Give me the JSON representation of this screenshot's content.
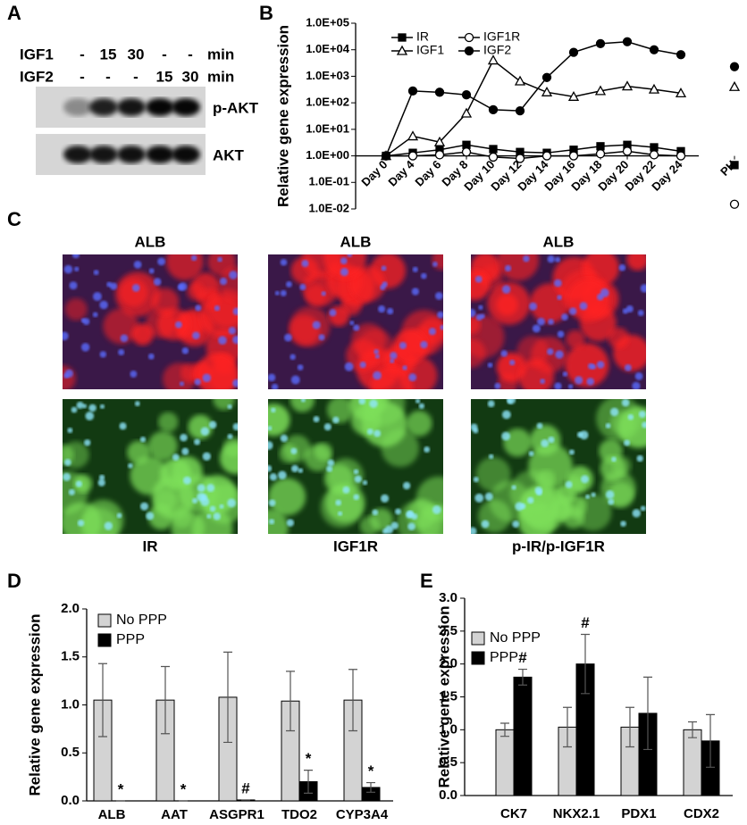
{
  "panel_A": {
    "label": "A",
    "rows": [
      {
        "name": "IGF1",
        "cells": [
          "-",
          "15",
          "30",
          "-",
          "-"
        ],
        "unit": "min"
      },
      {
        "name": "IGF2",
        "cells": [
          "-",
          "-",
          "-",
          "15",
          "30"
        ],
        "unit": "min"
      }
    ],
    "bands": [
      "p-AKT",
      "AKT"
    ]
  },
  "panel_C": {
    "label": "C",
    "top_labels": [
      "ALB",
      "ALB",
      "ALB"
    ],
    "bottom_labels": [
      "IR",
      "IGF1R",
      "p-IR/p-IGF1R"
    ]
  },
  "chart_data": [
    {
      "panel": "B",
      "type": "line",
      "y_label": "Relative gene expression",
      "log_scale": true,
      "x_axis_at": 1,
      "legend": "upper left",
      "categories": [
        "Day 0",
        "Day 4",
        "Day 6",
        "Day 8",
        "Day 10",
        "Day 12",
        "Day 14",
        "Day 16",
        "Day 18",
        "Day 20",
        "Day 22",
        "Day 24",
        null,
        "PH"
      ],
      "series": [
        {
          "name": "IR",
          "marker": "square",
          "filled": true,
          "color": "#000000",
          "values": [
            1.0,
            1.3,
            1.7,
            2.6,
            1.8,
            1.4,
            1.3,
            1.7,
            2.3,
            2.6,
            2.1,
            1.5,
            null,
            0.45
          ]
        },
        {
          "name": "IGF1R",
          "marker": "circle",
          "filled": false,
          "color": "#000000",
          "values": [
            1.0,
            1.0,
            1.1,
            1.4,
            0.9,
            0.8,
            1.0,
            1.0,
            1.2,
            1.5,
            1.1,
            1.0,
            null,
            0.015
          ]
        },
        {
          "name": "IGF1",
          "marker": "triangle",
          "filled": false,
          "color": "#000000",
          "values": [
            1.0,
            5.5,
            3.3,
            40,
            4000,
            650,
            250,
            170,
            280,
            420,
            320,
            230,
            null,
            400
          ]
        },
        {
          "name": "IGF2",
          "marker": "circle",
          "filled": true,
          "color": "#000000",
          "values": [
            1.0,
            280,
            250,
            200,
            55,
            50,
            900,
            8000,
            17000,
            20000,
            10000,
            6500,
            null,
            2300
          ]
        }
      ],
      "ylim": [
        0.01,
        100000
      ],
      "yticks": [
        {
          "value": 0.01,
          "label": "1.0E-02"
        },
        {
          "value": 0.1,
          "label": "1.0E-01"
        },
        {
          "value": 1,
          "label": "1.0E+00"
        },
        {
          "value": 10,
          "label": "1.0E+01"
        },
        {
          "value": 100,
          "label": "1.0E+02"
        },
        {
          "value": 1000,
          "label": "1.0E+03"
        },
        {
          "value": 10000,
          "label": "1.0E+04"
        },
        {
          "value": 100000,
          "label": "1.0E+05"
        }
      ]
    },
    {
      "panel": "D",
      "type": "bar",
      "y_label": "Relative gene expression",
      "legend": "upper left",
      "categories": [
        "ALB",
        "AAT",
        "ASGPR1",
        "TDO2",
        "CYP3A4"
      ],
      "series": [
        {
          "name": "No PPP",
          "color": "#d3d3d3",
          "values": [
            1.05,
            1.05,
            1.08,
            1.04,
            1.05
          ],
          "errors": [
            0.38,
            0.35,
            0.47,
            0.31,
            0.32
          ]
        },
        {
          "name": "PPP",
          "color": "#000000",
          "values": [
            0.0,
            0.0,
            0.01,
            0.2,
            0.14
          ],
          "errors": [
            0,
            0,
            0,
            0.12,
            0.05
          ],
          "annotations": [
            "*",
            "*",
            "#",
            "*",
            "*"
          ]
        }
      ],
      "ylim": [
        0,
        2
      ],
      "yticks": [
        {
          "value": 0,
          "label": "0.0"
        },
        {
          "value": 0.5,
          "label": "0.5"
        },
        {
          "value": 1,
          "label": "1.0"
        },
        {
          "value": 1.5,
          "label": "1.5"
        },
        {
          "value": 2,
          "label": "2.0"
        }
      ]
    },
    {
      "panel": "E",
      "type": "bar",
      "y_label": "Relative gene expression",
      "legend": "upper left",
      "categories": [
        "CK7",
        "NKX2.1",
        "PDX1",
        "CDX2"
      ],
      "series": [
        {
          "name": "No PPP",
          "color": "#d3d3d3",
          "values": [
            1.0,
            1.04,
            1.04,
            1.0
          ],
          "errors": [
            0.1,
            0.3,
            0.3,
            0.12
          ]
        },
        {
          "name": "PPP",
          "color": "#000000",
          "values": [
            1.8,
            2.0,
            1.25,
            0.83
          ],
          "errors": [
            0.12,
            0.45,
            0.55,
            0.4
          ],
          "annotations": [
            "#",
            "#",
            null,
            null
          ]
        }
      ],
      "ylim": [
        0,
        3
      ],
      "yticks": [
        {
          "value": 0,
          "label": "0.0"
        },
        {
          "value": 0.5,
          "label": "0.5"
        },
        {
          "value": 1,
          "label": "1.0"
        },
        {
          "value": 1.5,
          "label": "1.5"
        },
        {
          "value": 2,
          "label": "2.0"
        },
        {
          "value": 2.5,
          "label": "2.5"
        },
        {
          "value": 3,
          "label": "3.0"
        }
      ]
    }
  ]
}
